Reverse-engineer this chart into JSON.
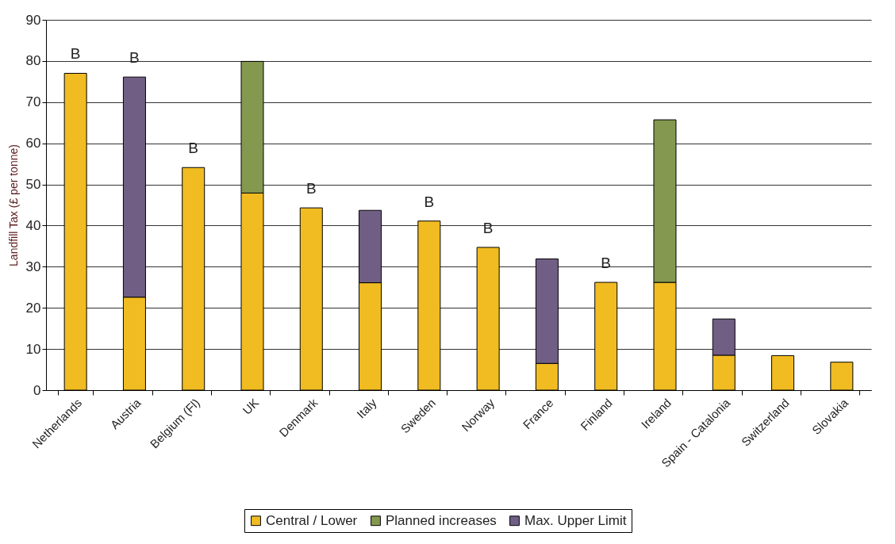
{
  "chart_data": {
    "type": "bar",
    "stacked": true,
    "ylabel": "Landfill Tax (£ per tonne)",
    "categories": [
      "Netherlands",
      "Austria",
      "Belgium (Fl)",
      "UK",
      "Denmark",
      "Italy",
      "Sweden",
      "Norway",
      "France",
      "Finland",
      "Ireland",
      "Spain - Catalonia",
      "Switzerland",
      "Slovakia"
    ],
    "series": [
      {
        "name": "Central / Lower",
        "color": "#f0bc22",
        "values": [
          77,
          22.6,
          54.1,
          47.9,
          44.3,
          26.1,
          41.1,
          34.7,
          6.5,
          26.2,
          26.2,
          8.5,
          8.4,
          6.8
        ]
      },
      {
        "name": "Planned increases",
        "color": "#84994f",
        "values": [
          null,
          null,
          null,
          32,
          null,
          null,
          null,
          null,
          null,
          null,
          39.5,
          null,
          null,
          null
        ]
      },
      {
        "name": "Max. Upper Limit",
        "color": "#705e85",
        "values": [
          null,
          53.5,
          null,
          null,
          null,
          17.6,
          null,
          null,
          25.4,
          null,
          null,
          8.8,
          null,
          null
        ]
      }
    ],
    "ylim": [
      0,
      90
    ],
    "yticks": [
      0,
      10,
      20,
      30,
      40,
      50,
      60,
      70,
      80,
      90
    ],
    "grid": "y",
    "legend": "bottom",
    "annotations": [
      {
        "text": "B",
        "x": "Netherlands",
        "y": 77
      },
      {
        "text": "B",
        "x": "Austria",
        "y": 76.1
      },
      {
        "text": "B",
        "x": "Belgium (Fl)",
        "y": 54.1
      },
      {
        "text": "B",
        "x": "Denmark",
        "y": 44.3
      },
      {
        "text": "B",
        "x": "Sweden",
        "y": 41.1
      },
      {
        "text": "B",
        "x": "Norway",
        "y": 34.7
      },
      {
        "text": "B",
        "x": "Finland",
        "y": 26.2
      }
    ]
  }
}
